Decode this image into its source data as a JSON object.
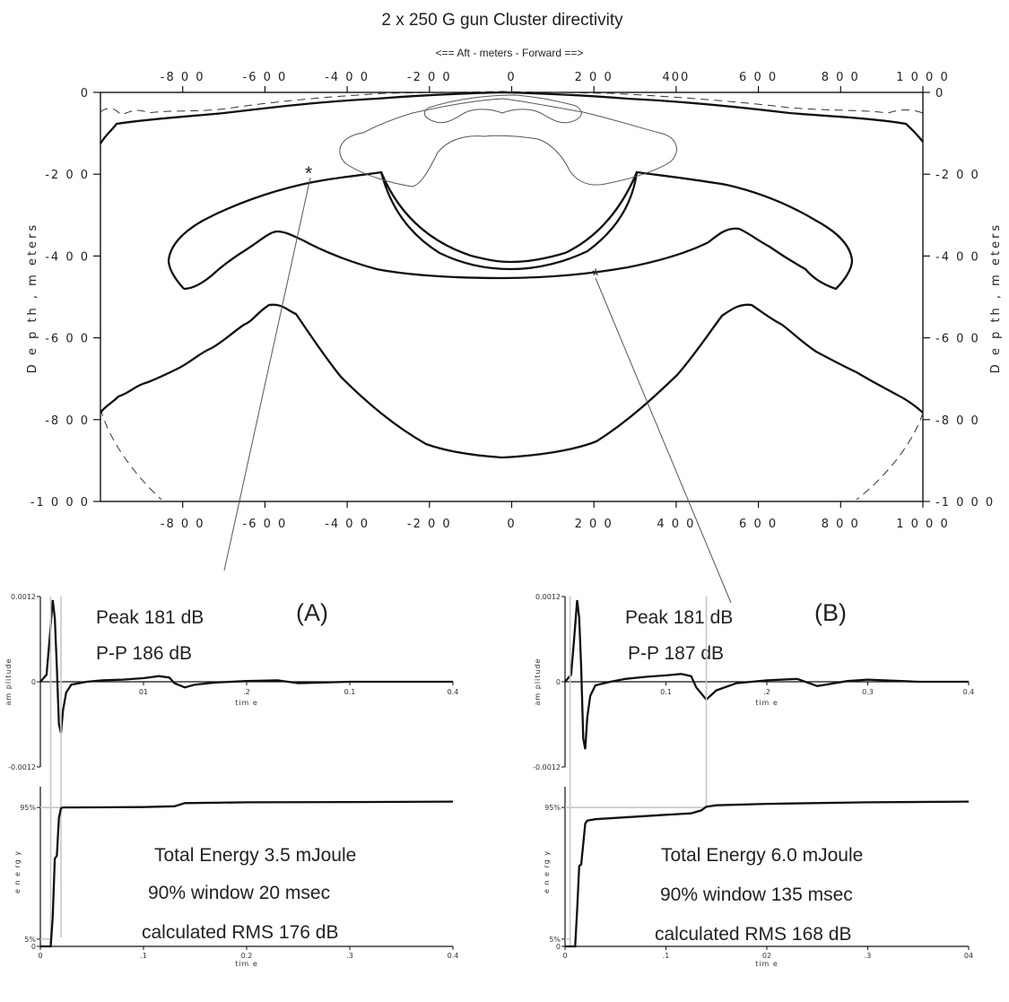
{
  "chart_data": [
    {
      "type": "contour",
      "title": "2 x 250 G gun Cluster directivity",
      "xlabel_top": "<== Aft - meters - Forward ==>",
      "ylabel": "D e p th , m eters",
      "top_ticks": [
        "-8 0 0",
        "-6 0 0",
        "-4 0 0",
        "-2 0 0",
        "0",
        "2 0 0",
        "400",
        "6 0 0",
        "8 0 0",
        "1 0 0 0"
      ],
      "bottom_ticks": [
        "-8 0 0",
        "-6 0 0",
        "-4 0 0",
        "-2 0 0",
        "0",
        "2 0 0",
        "4 0 0",
        "6 0 0",
        "8 0 0",
        "1 0 0 0"
      ],
      "left_ticks": [
        "0",
        "-2 0 0",
        "-4 0 0",
        "-6 0 0",
        "-8 0 0",
        "-1 0 0 0"
      ],
      "right_ticks": [
        "0",
        "-2 0 0",
        "-4 0 0",
        "-6 0 0",
        "-8 0 0",
        "-1 0 0 0"
      ],
      "xlim": [
        -1000,
        1000
      ],
      "ylim": [
        -1000,
        0
      ],
      "markers": [
        {
          "label": "*",
          "x": -500,
          "y": -190
        },
        {
          "label": "*",
          "x": 210,
          "y": -440
        }
      ]
    },
    {
      "type": "line",
      "panel_label": "(A)",
      "annotations": {
        "peak": "Peak 181 dB",
        "pp": "P-P 186 dB",
        "energy": "Total Energy 3.5 mJoule",
        "window": "90% window 20 msec",
        "rms": "calculated RMS 176 dB"
      },
      "amplitude": {
        "ylabel": "am plitude",
        "xlabel": "tim e",
        "y_ticks": [
          "0.0012",
          "0",
          "-0.0012"
        ],
        "x_ticks": [
          "01",
          ".2",
          "0.1",
          "0.4"
        ],
        "x": [
          0,
          0.006,
          0.009,
          0.012,
          0.014,
          0.016,
          0.018,
          0.02,
          0.022,
          0.025,
          0.03,
          0.045,
          0.06,
          0.08,
          0.1,
          0.115,
          0.125,
          0.13,
          0.14,
          0.15,
          0.17,
          0.2,
          0.23,
          0.25,
          0.3,
          0.35,
          0.4
        ],
        "y": [
          0,
          0.0001,
          0.0006,
          0.00115,
          0.0009,
          0.0002,
          -0.0006,
          -0.00072,
          -0.0004,
          -0.00015,
          -4e-05,
          0,
          2e-05,
          3e-05,
          5e-05,
          8e-05,
          6e-05,
          -2e-05,
          -8e-05,
          -4e-05,
          -1e-05,
          1e-05,
          2e-05,
          -2e-05,
          0,
          0,
          0
        ]
      },
      "energy": {
        "ylabel": "e n e rg y",
        "xlabel": "tim e",
        "y_ticks": [
          "95%",
          "5%",
          "0"
        ],
        "x_ticks": [
          "0",
          ".1",
          "0.2",
          ".3",
          "0.4"
        ],
        "x": [
          0,
          0.01,
          0.012,
          0.014,
          0.016,
          0.018,
          0.02,
          0.022,
          0.03,
          0.1,
          0.13,
          0.14,
          0.2,
          0.3,
          0.4
        ],
        "y": [
          0,
          0,
          0.2,
          0.6,
          0.62,
          0.88,
          0.945,
          0.95,
          0.95,
          0.953,
          0.958,
          0.98,
          0.985,
          0.987,
          0.99
        ]
      },
      "window_x": [
        0.01,
        0.02
      ]
    },
    {
      "type": "line",
      "panel_label": "(B)",
      "annotations": {
        "peak": "Peak 181 dB",
        "pp": "P-P 187 dB",
        "energy": "Total Energy 6.0 mJoule",
        "window": "90% window 135 msec",
        "rms": "calculated RMS 168 dB"
      },
      "amplitude": {
        "ylabel": "am plitude",
        "xlabel": "tim e",
        "y_ticks": [
          "0.0012",
          "0",
          "-0.0012"
        ],
        "x_ticks": [
          "0.1",
          ".2",
          "0.3",
          "0.4"
        ],
        "x": [
          0,
          0.006,
          0.009,
          0.012,
          0.014,
          0.016,
          0.018,
          0.02,
          0.022,
          0.025,
          0.03,
          0.045,
          0.06,
          0.08,
          0.1,
          0.115,
          0.125,
          0.13,
          0.14,
          0.15,
          0.17,
          0.2,
          0.23,
          0.25,
          0.28,
          0.3,
          0.35,
          0.4
        ],
        "y": [
          0,
          0.0001,
          0.0006,
          0.00115,
          0.0009,
          0.0002,
          -0.0008,
          -0.00095,
          -0.0005,
          -0.0002,
          -5e-05,
          0,
          4e-05,
          7e-05,
          9e-05,
          0.00011,
          8e-05,
          -8e-05,
          -0.00025,
          -0.00012,
          -2e-05,
          2e-05,
          4e-05,
          -6e-05,
          1e-05,
          3e-05,
          0,
          0
        ]
      },
      "energy": {
        "ylabel": "e n e rg y",
        "xlabel": "tim e",
        "y_ticks": [
          "95%",
          "5%",
          "0"
        ],
        "x_ticks": [
          "0",
          ".1",
          "02",
          ".3",
          "04"
        ],
        "x": [
          0,
          0.01,
          0.012,
          0.014,
          0.016,
          0.018,
          0.02,
          0.022,
          0.03,
          0.1,
          0.125,
          0.135,
          0.14,
          0.15,
          0.2,
          0.3,
          0.4
        ],
        "y": [
          0,
          0,
          0.25,
          0.55,
          0.56,
          0.7,
          0.84,
          0.86,
          0.87,
          0.9,
          0.91,
          0.93,
          0.955,
          0.965,
          0.975,
          0.985,
          0.99
        ]
      },
      "window_x": [
        0.005,
        0.14
      ]
    }
  ]
}
